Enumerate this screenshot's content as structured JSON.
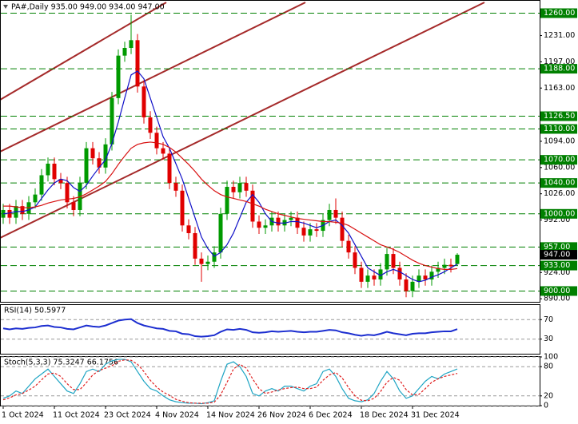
{
  "chart_data": [
    {
      "type": "candlestick",
      "title": "PA#,Daily  935.00 949.00 934.00 947.00",
      "categories": [
        "1 Oct 2024",
        null,
        null,
        null,
        null,
        null,
        null,
        null,
        "11 Oct 2024",
        null,
        null,
        null,
        null,
        null,
        null,
        null,
        "23 Oct 2024",
        null,
        null,
        null,
        null,
        null,
        null,
        null,
        "4 Nov 2024",
        null,
        null,
        null,
        null,
        null,
        null,
        null,
        "14 Nov 2024",
        null,
        null,
        null,
        null,
        null,
        null,
        null,
        "26 Nov 2024",
        null,
        null,
        null,
        null,
        null,
        null,
        null,
        "6 Dec 2024",
        null,
        null,
        null,
        null,
        null,
        null,
        null,
        "18 Dec 2024",
        null,
        null,
        null,
        null,
        null,
        null,
        null,
        "31 Dec 2024",
        null,
        null,
        null,
        null,
        null,
        null,
        null
      ],
      "open": [
        995,
        1005,
        995,
        1010,
        1000,
        1015,
        1025,
        1050,
        1065,
        1045,
        1040,
        1015,
        1005,
        1040,
        1085,
        1072,
        1060,
        1090,
        1150,
        1205,
        1215,
        1225,
        1165,
        1125,
        1105,
        1085,
        1078,
        1040,
        1030,
        985,
        975,
        942,
        935,
        938,
        950,
        1000,
        1035,
        1028,
        1040,
        1030,
        990,
        982,
        985,
        995,
        985,
        992,
        995,
        982,
        972,
        980,
        978,
        992,
        1005,
        995,
        965,
        950,
        930,
        912,
        920,
        915,
        928,
        948,
        930,
        915,
        900,
        912,
        920,
        915,
        925,
        930,
        934,
        935
      ],
      "high": [
        1013,
        1013,
        1018,
        1018,
        1023,
        1033,
        1058,
        1073,
        1073,
        1053,
        1048,
        1023,
        1048,
        1093,
        1093,
        1080,
        1098,
        1158,
        1213,
        1223,
        1258,
        1233,
        1173,
        1133,
        1113,
        1093,
        1086,
        1048,
        1038,
        993,
        983,
        950,
        946,
        958,
        1008,
        1043,
        1043,
        1048,
        1048,
        1038,
        998,
        993,
        1003,
        1003,
        1000,
        1003,
        1003,
        990,
        988,
        988,
        1000,
        1013,
        1020,
        1003,
        973,
        958,
        938,
        928,
        928,
        936,
        956,
        956,
        938,
        923,
        920,
        928,
        928,
        933,
        938,
        942,
        942,
        949
      ],
      "low": [
        987,
        987,
        987,
        992,
        992,
        1007,
        1017,
        1042,
        1037,
        1032,
        1007,
        997,
        997,
        1032,
        1064,
        1052,
        1052,
        1082,
        1142,
        1197,
        1207,
        1157,
        1117,
        1097,
        1077,
        1070,
        1032,
        1022,
        977,
        967,
        934,
        912,
        927,
        930,
        942,
        992,
        1020,
        1020,
        1022,
        982,
        974,
        974,
        977,
        977,
        977,
        984,
        974,
        964,
        964,
        970,
        970,
        984,
        987,
        957,
        942,
        922,
        904,
        904,
        907,
        907,
        920,
        922,
        907,
        892,
        892,
        904,
        907,
        907,
        917,
        922,
        924,
        934
      ],
      "close": [
        1005,
        995,
        1010,
        1000,
        1015,
        1025,
        1050,
        1065,
        1045,
        1040,
        1015,
        1005,
        1040,
        1085,
        1072,
        1060,
        1090,
        1150,
        1205,
        1215,
        1225,
        1165,
        1125,
        1105,
        1085,
        1078,
        1040,
        1030,
        985,
        975,
        942,
        935,
        938,
        950,
        1000,
        1035,
        1028,
        1040,
        1030,
        990,
        982,
        985,
        995,
        985,
        992,
        995,
        982,
        972,
        980,
        978,
        992,
        1005,
        995,
        965,
        950,
        930,
        912,
        920,
        915,
        928,
        948,
        930,
        915,
        900,
        912,
        920,
        915,
        925,
        930,
        934,
        932,
        947
      ],
      "up_color": "#009a00",
      "down_color": "#e00000",
      "series": [
        {
          "color": "#1010c8",
          "values": [
            1000,
            1001,
            1003,
            1003,
            1005,
            1009,
            1020,
            1031,
            1040,
            1045,
            1043,
            1034,
            1029,
            1037,
            1049,
            1060,
            1070,
            1091,
            1119,
            1150,
            1180,
            1185,
            1175,
            1150,
            1125,
            1100,
            1085,
            1065,
            1045,
            1020,
            995,
            970,
            955,
            945,
            950,
            960,
            975,
            995,
            1015,
            1025,
            1015,
            1000,
            990,
            988,
            988,
            990,
            990,
            988,
            985,
            982,
            985,
            990,
            992,
            985,
            975,
            960,
            945,
            930,
            925,
            920,
            925,
            928,
            925,
            920,
            915,
            912,
            914,
            918,
            921,
            925,
            930,
            935
          ]
        },
        {
          "color": "#d81010",
          "values": [
            1010,
            1010,
            1009,
            1008,
            1008,
            1009,
            1011,
            1014,
            1016,
            1018,
            1019,
            1020,
            1022,
            1026,
            1031,
            1036,
            1042,
            1052,
            1064,
            1075,
            1085,
            1090,
            1092,
            1093,
            1092,
            1090,
            1086,
            1080,
            1072,
            1064,
            1055,
            1045,
            1037,
            1030,
            1025,
            1022,
            1020,
            1018,
            1016,
            1013,
            1010,
            1006,
            1003,
            1000,
            998,
            996,
            994,
            993,
            992,
            991,
            990,
            990,
            989,
            988,
            985,
            980,
            975,
            970,
            965,
            960,
            957,
            954,
            950,
            945,
            940,
            936,
            933,
            931,
            929,
            928,
            928,
            929
          ]
        }
      ],
      "ylim": [
        886,
        1275
      ],
      "yticks": [
        {
          "value": 1231,
          "label": "1231.00"
        },
        {
          "value": 1197,
          "label": "1197.00"
        },
        {
          "value": 1163,
          "label": "1163.00"
        },
        {
          "value": 1094,
          "label": "1094.00"
        },
        {
          "value": 1060,
          "label": "1060.00"
        },
        {
          "value": 1026,
          "label": "1026.00"
        },
        {
          "value": 992,
          "label": "992.00"
        },
        {
          "value": 924,
          "label": "924.00"
        },
        {
          "value": 890,
          "label": "890.00"
        }
      ],
      "levels": [
        {
          "value": 1260,
          "label": "1260.00"
        },
        {
          "value": 1188,
          "label": "1188.00"
        },
        {
          "value": 1126.5,
          "label": "1126.50"
        },
        {
          "value": 1110,
          "label": "1110.00"
        },
        {
          "value": 1070,
          "label": "1070.00"
        },
        {
          "value": 1040,
          "label": "1040.00"
        },
        {
          "value": 1000,
          "label": "1000.00"
        },
        {
          "value": 957,
          "label": "957.00"
        },
        {
          "value": 933,
          "label": "933.00"
        },
        {
          "value": 900,
          "label": "900.00"
        }
      ],
      "level_color": "#008000",
      "last_price": {
        "value": 947,
        "label": "947.00"
      },
      "last_price_color": "#000000"
    },
    {
      "type": "line",
      "title": "RSI(14) 50.5977",
      "ylim": [
        0,
        100
      ],
      "yticks": [
        30,
        70
      ],
      "grid": true,
      "series": [
        {
          "color": "#1c2ed0",
          "values": [
            52,
            50,
            52,
            51,
            53,
            54,
            57,
            58,
            55,
            54,
            51,
            50,
            54,
            58,
            56,
            55,
            58,
            63,
            68,
            70,
            71,
            63,
            58,
            55,
            52,
            51,
            47,
            46,
            41,
            40,
            36,
            35,
            36,
            38,
            45,
            50,
            49,
            51,
            49,
            44,
            43,
            44,
            46,
            45,
            46,
            47,
            45,
            44,
            45,
            45,
            47,
            49,
            48,
            44,
            42,
            39,
            37,
            39,
            38,
            41,
            45,
            42,
            40,
            38,
            41,
            42,
            42,
            44,
            45,
            46,
            46,
            50.5977
          ]
        }
      ]
    },
    {
      "type": "line",
      "title": "Stoch(5,3,3) 75.3247 66.1756",
      "ylim": [
        0,
        100
      ],
      "yticks": [
        0,
        20,
        80,
        100
      ],
      "grid": true,
      "series": [
        {
          "color": "#1fa5c4",
          "values": [
            15,
            20,
            30,
            25,
            40,
            55,
            65,
            75,
            60,
            45,
            30,
            25,
            45,
            70,
            75,
            70,
            85,
            92,
            95,
            95,
            90,
            70,
            50,
            35,
            30,
            20,
            12,
            8,
            6,
            5,
            5,
            4,
            6,
            10,
            50,
            85,
            90,
            80,
            60,
            25,
            20,
            30,
            35,
            30,
            40,
            40,
            35,
            30,
            40,
            45,
            70,
            75,
            60,
            35,
            15,
            10,
            8,
            12,
            25,
            50,
            70,
            55,
            30,
            15,
            20,
            35,
            50,
            60,
            55,
            65,
            70,
            75.3247
          ]
        },
        {
          "color": "#e02020",
          "dashed": true,
          "values": [
            12,
            16,
            22,
            25,
            32,
            40,
            53,
            65,
            67,
            60,
            45,
            33,
            33,
            47,
            63,
            72,
            77,
            82,
            91,
            94,
            93,
            85,
            70,
            52,
            38,
            28,
            21,
            13,
            9,
            6,
            5,
            5,
            5,
            7,
            22,
            48,
            75,
            85,
            77,
            55,
            35,
            25,
            28,
            32,
            35,
            37,
            38,
            35,
            35,
            38,
            52,
            63,
            68,
            57,
            37,
            20,
            11,
            10,
            15,
            29,
            48,
            58,
            52,
            33,
            22,
            23,
            35,
            48,
            55,
            60,
            63,
            66.1756
          ]
        }
      ]
    }
  ]
}
